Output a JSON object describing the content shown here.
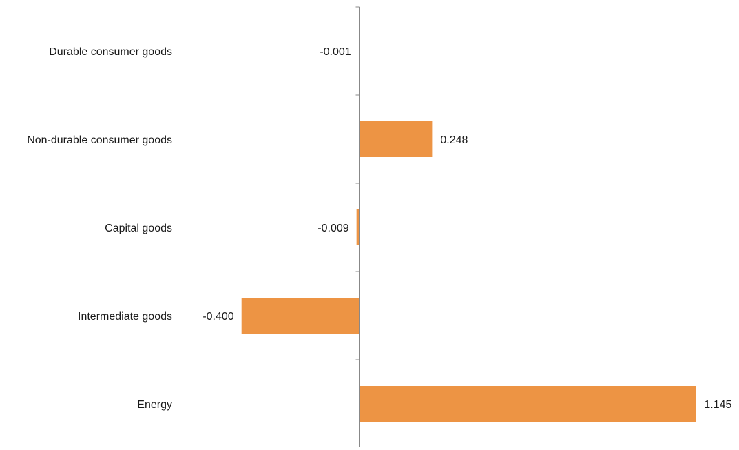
{
  "chart_data": {
    "type": "bar",
    "orientation": "horizontal",
    "title": "",
    "xlabel": "",
    "ylabel": "",
    "categories": [
      "Durable consumer goods",
      "Non-durable consumer goods",
      "Capital goods",
      "Intermediate goods",
      "Energy"
    ],
    "values": [
      -0.001,
      0.248,
      -0.009,
      -0.4,
      1.145
    ],
    "value_labels": [
      "-0.001",
      "0.248",
      "-0.009",
      "-0.400",
      "1.145"
    ],
    "xlim": [
      -0.5,
      1.2
    ],
    "bar_color": "#ED9444",
    "axis_color": "#888888",
    "grid": false,
    "legend": "none",
    "data_labels": "outside-end"
  }
}
